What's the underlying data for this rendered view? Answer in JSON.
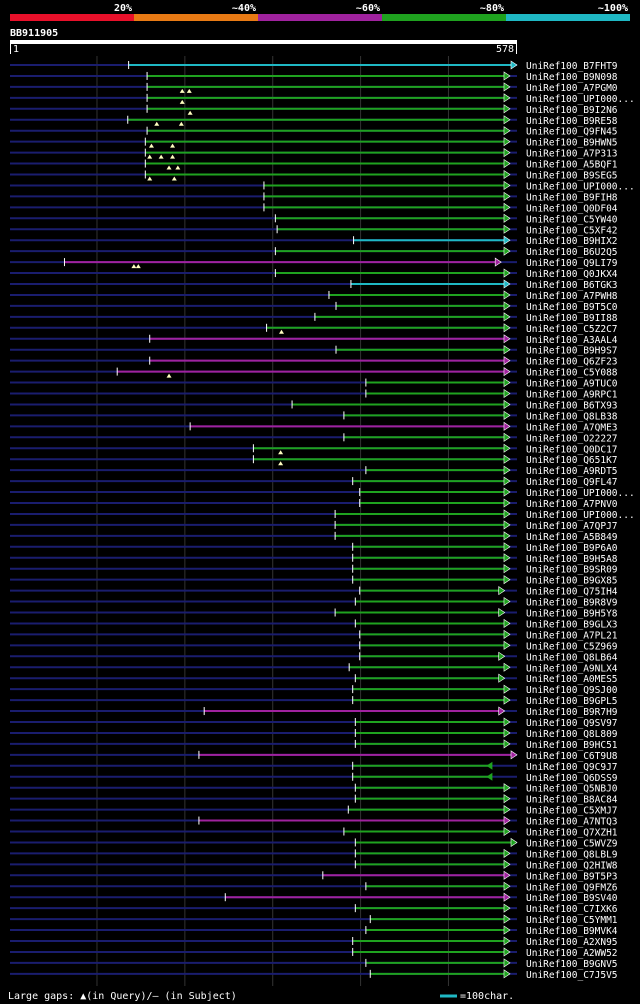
{
  "chart_data": {
    "type": "alignment-overview",
    "query_id": "BB911905",
    "query_range": [
      1,
      578
    ],
    "identity_legend": [
      {
        "label": "20%",
        "color": "#e8102a"
      },
      {
        "label": "~40%",
        "color": "#e87a14"
      },
      {
        "label": "~60%",
        "color": "#a0229e"
      },
      {
        "label": "~80%",
        "color": "#1fa21f"
      },
      {
        "label": "~100%",
        "color": "#1fb8c4"
      }
    ],
    "footer_text": "Large gaps: ▲(in Query)/— (in Subject)",
    "scale_text": "=100char.",
    "hits": [
      {
        "label": "UniRef100_B7FHT9",
        "start": 136,
        "end": 578,
        "pid": 100,
        "arrow": "right",
        "gaps": []
      },
      {
        "label": "UniRef100_B9N098",
        "start": 157,
        "end": 570,
        "pid": 80,
        "arrow": "right",
        "gaps": []
      },
      {
        "label": "UniRef100_A7PGM0",
        "start": 157,
        "end": 570,
        "pid": 80,
        "arrow": "right",
        "gaps": [
          197,
          205
        ]
      },
      {
        "label": "UniRef100_UPI000...",
        "start": 157,
        "end": 570,
        "pid": 80,
        "arrow": "right",
        "gaps": [
          197
        ]
      },
      {
        "label": "UniRef100_B9I2N6",
        "start": 157,
        "end": 570,
        "pid": 80,
        "arrow": "right",
        "gaps": [
          206
        ]
      },
      {
        "label": "UniRef100_B9RE58",
        "start": 135,
        "end": 570,
        "pid": 80,
        "arrow": "right",
        "gaps": [
          168,
          196
        ]
      },
      {
        "label": "UniRef100_Q9FN45",
        "start": 157,
        "end": 570,
        "pid": 80,
        "arrow": "right",
        "gaps": []
      },
      {
        "label": "UniRef100_B9HWN5",
        "start": 155,
        "end": 570,
        "pid": 80,
        "arrow": "right",
        "gaps": [
          162,
          186
        ]
      },
      {
        "label": "UniRef100_A7P313",
        "start": 155,
        "end": 570,
        "pid": 80,
        "arrow": "right",
        "gaps": [
          160,
          173,
          186
        ]
      },
      {
        "label": "UniRef100_A5BQF1",
        "start": 155,
        "end": 570,
        "pid": 80,
        "arrow": "right",
        "gaps": [
          182,
          192
        ]
      },
      {
        "label": "UniRef100_B9SEG5",
        "start": 155,
        "end": 570,
        "pid": 80,
        "arrow": "right",
        "gaps": [
          160,
          188
        ]
      },
      {
        "label": "UniRef100_UPI000...",
        "start": 290,
        "end": 570,
        "pid": 80,
        "arrow": "right",
        "gaps": []
      },
      {
        "label": "UniRef100_B9FIH8",
        "start": 290,
        "end": 570,
        "pid": 80,
        "arrow": "right",
        "gaps": []
      },
      {
        "label": "UniRef100_Q0DF04",
        "start": 290,
        "end": 570,
        "pid": 80,
        "arrow": "right",
        "gaps": []
      },
      {
        "label": "UniRef100_C5YW40",
        "start": 303,
        "end": 570,
        "pid": 80,
        "arrow": "right",
        "gaps": []
      },
      {
        "label": "UniRef100_C5XF42",
        "start": 305,
        "end": 570,
        "pid": 80,
        "arrow": "right",
        "gaps": []
      },
      {
        "label": "UniRef100_B9HIX2",
        "start": 392,
        "end": 570,
        "pid": 100,
        "arrow": "right",
        "gaps": []
      },
      {
        "label": "UniRef100_B6U2Q5",
        "start": 303,
        "end": 570,
        "pid": 80,
        "arrow": "right",
        "gaps": []
      },
      {
        "label": "UniRef100_Q9LI79",
        "start": 63,
        "end": 560,
        "pid": 60,
        "arrow": "right",
        "gaps": [
          142,
          147
        ]
      },
      {
        "label": "UniRef100_Q0JKX4",
        "start": 303,
        "end": 570,
        "pid": 80,
        "arrow": "right",
        "gaps": []
      },
      {
        "label": "UniRef100_B6TGK3",
        "start": 389,
        "end": 570,
        "pid": 100,
        "arrow": "right",
        "gaps": []
      },
      {
        "label": "UniRef100_A7PWH8",
        "start": 364,
        "end": 570,
        "pid": 80,
        "arrow": "right",
        "gaps": []
      },
      {
        "label": "UniRef100_B9T5C0",
        "start": 372,
        "end": 570,
        "pid": 80,
        "arrow": "right",
        "gaps": []
      },
      {
        "label": "UniRef100_B9II88",
        "start": 348,
        "end": 570,
        "pid": 80,
        "arrow": "right",
        "gaps": []
      },
      {
        "label": "UniRef100_C5Z2C7",
        "start": 293,
        "end": 570,
        "pid": 80,
        "arrow": "right",
        "gaps": [
          310
        ]
      },
      {
        "label": "UniRef100_A3AAL4",
        "start": 160,
        "end": 570,
        "pid": 60,
        "arrow": "right",
        "gaps": []
      },
      {
        "label": "UniRef100_B9H9S7",
        "start": 372,
        "end": 570,
        "pid": 80,
        "arrow": "right",
        "gaps": []
      },
      {
        "label": "UniRef100_Q6ZF23",
        "start": 160,
        "end": 570,
        "pid": 60,
        "arrow": "right",
        "gaps": []
      },
      {
        "label": "UniRef100_C5Y088",
        "start": 123,
        "end": 570,
        "pid": 60,
        "arrow": "right",
        "gaps": [
          182
        ]
      },
      {
        "label": "UniRef100_A9TUC0",
        "start": 406,
        "end": 570,
        "pid": 80,
        "arrow": "right",
        "gaps": []
      },
      {
        "label": "UniRef100_A9RPC1",
        "start": 406,
        "end": 570,
        "pid": 80,
        "arrow": "right",
        "gaps": []
      },
      {
        "label": "UniRef100_B6TX93",
        "start": 322,
        "end": 570,
        "pid": 80,
        "arrow": "right",
        "gaps": []
      },
      {
        "label": "UniRef100_Q8LB38",
        "start": 381,
        "end": 570,
        "pid": 80,
        "arrow": "right",
        "gaps": []
      },
      {
        "label": "UniRef100_A7QME3",
        "start": 206,
        "end": 570,
        "pid": 60,
        "arrow": "right",
        "gaps": []
      },
      {
        "label": "UniRef100_O22227",
        "start": 381,
        "end": 570,
        "pid": 80,
        "arrow": "right",
        "gaps": []
      },
      {
        "label": "UniRef100_Q0DC17",
        "start": 278,
        "end": 570,
        "pid": 80,
        "arrow": "right",
        "gaps": [
          309
        ]
      },
      {
        "label": "UniRef100_Q651K7",
        "start": 278,
        "end": 570,
        "pid": 80,
        "arrow": "right",
        "gaps": [
          309
        ]
      },
      {
        "label": "UniRef100_A9RDT5",
        "start": 406,
        "end": 570,
        "pid": 80,
        "arrow": "right",
        "gaps": []
      },
      {
        "label": "UniRef100_Q9FL47",
        "start": 391,
        "end": 570,
        "pid": 80,
        "arrow": "right",
        "gaps": []
      },
      {
        "label": "UniRef100_UPI000...",
        "start": 399,
        "end": 570,
        "pid": 80,
        "arrow": "right",
        "gaps": []
      },
      {
        "label": "UniRef100_A7PNV0",
        "start": 399,
        "end": 570,
        "pid": 80,
        "arrow": "right",
        "gaps": []
      },
      {
        "label": "UniRef100_UPI000...",
        "start": 371,
        "end": 570,
        "pid": 80,
        "arrow": "right",
        "gaps": []
      },
      {
        "label": "UniRef100_A7QPJ7",
        "start": 371,
        "end": 570,
        "pid": 80,
        "arrow": "right",
        "gaps": []
      },
      {
        "label": "UniRef100_A5B849",
        "start": 371,
        "end": 570,
        "pid": 80,
        "arrow": "right",
        "gaps": []
      },
      {
        "label": "UniRef100_B9P6A0",
        "start": 391,
        "end": 570,
        "pid": 80,
        "arrow": "right",
        "gaps": []
      },
      {
        "label": "UniRef100_B9H5A8",
        "start": 391,
        "end": 570,
        "pid": 80,
        "arrow": "right",
        "gaps": []
      },
      {
        "label": "UniRef100_B9SR09",
        "start": 391,
        "end": 570,
        "pid": 80,
        "arrow": "right",
        "gaps": []
      },
      {
        "label": "UniRef100_B9GX85",
        "start": 391,
        "end": 570,
        "pid": 80,
        "arrow": "right",
        "gaps": []
      },
      {
        "label": "UniRef100_Q75IH4",
        "start": 399,
        "end": 564,
        "pid": 80,
        "arrow": "right",
        "gaps": []
      },
      {
        "label": "UniRef100_B9R8V9",
        "start": 394,
        "end": 570,
        "pid": 80,
        "arrow": "right",
        "gaps": []
      },
      {
        "label": "UniRef100_B9H5Y8",
        "start": 371,
        "end": 564,
        "pid": 80,
        "arrow": "right",
        "gaps": []
      },
      {
        "label": "UniRef100_B9GLX3",
        "start": 394,
        "end": 570,
        "pid": 80,
        "arrow": "right",
        "gaps": []
      },
      {
        "label": "UniRef100_A7PL21",
        "start": 399,
        "end": 570,
        "pid": 80,
        "arrow": "right",
        "gaps": []
      },
      {
        "label": "UniRef100_C5Z969",
        "start": 399,
        "end": 570,
        "pid": 80,
        "arrow": "right",
        "gaps": []
      },
      {
        "label": "UniRef100_Q8LB64",
        "start": 399,
        "end": 564,
        "pid": 80,
        "arrow": "right",
        "gaps": []
      },
      {
        "label": "UniRef100_A9NLX4",
        "start": 387,
        "end": 570,
        "pid": 80,
        "arrow": "right",
        "gaps": []
      },
      {
        "label": "UniRef100_A0MES5",
        "start": 394,
        "end": 564,
        "pid": 80,
        "arrow": "right",
        "gaps": []
      },
      {
        "label": "UniRef100_Q9SJ00",
        "start": 391,
        "end": 570,
        "pid": 80,
        "arrow": "right",
        "gaps": []
      },
      {
        "label": "UniRef100_B9GPL5",
        "start": 391,
        "end": 570,
        "pid": 80,
        "arrow": "right",
        "gaps": []
      },
      {
        "label": "UniRef100_B9R7H9",
        "start": 222,
        "end": 564,
        "pid": 60,
        "arrow": "right",
        "gaps": []
      },
      {
        "label": "UniRef100_Q9SV97",
        "start": 394,
        "end": 570,
        "pid": 80,
        "arrow": "right",
        "gaps": []
      },
      {
        "label": "UniRef100_Q8L809",
        "start": 394,
        "end": 570,
        "pid": 80,
        "arrow": "right",
        "gaps": []
      },
      {
        "label": "UniRef100_B9HC51",
        "start": 394,
        "end": 570,
        "pid": 80,
        "arrow": "right",
        "gaps": []
      },
      {
        "label": "UniRef100_C6T9U8",
        "start": 216,
        "end": 578,
        "pid": 60,
        "arrow": "right",
        "gaps": []
      },
      {
        "label": "UniRef100_Q9C9J7",
        "start": 391,
        "end": 550,
        "pid": 80,
        "arrow": "left",
        "gaps": []
      },
      {
        "label": "UniRef100_Q6DSS9",
        "start": 391,
        "end": 550,
        "pid": 80,
        "arrow": "left",
        "gaps": []
      },
      {
        "label": "UniRef100_Q5NBJ0",
        "start": 394,
        "end": 570,
        "pid": 80,
        "arrow": "right",
        "gaps": []
      },
      {
        "label": "UniRef100_B8AC84",
        "start": 394,
        "end": 570,
        "pid": 80,
        "arrow": "right",
        "gaps": []
      },
      {
        "label": "UniRef100_C5XMJ7",
        "start": 386,
        "end": 570,
        "pid": 80,
        "arrow": "right",
        "gaps": []
      },
      {
        "label": "UniRef100_A7NTQ3",
        "start": 216,
        "end": 570,
        "pid": 60,
        "arrow": "right",
        "gaps": []
      },
      {
        "label": "UniRef100_Q7XZH1",
        "start": 381,
        "end": 570,
        "pid": 80,
        "arrow": "right",
        "gaps": []
      },
      {
        "label": "UniRef100_C5WVZ9",
        "start": 394,
        "end": 578,
        "pid": 80,
        "arrow": "right",
        "gaps": []
      },
      {
        "label": "UniRef100_Q8LBL9",
        "start": 394,
        "end": 570,
        "pid": 80,
        "arrow": "right",
        "gaps": []
      },
      {
        "label": "UniRef100_Q2HIW8",
        "start": 394,
        "end": 570,
        "pid": 80,
        "arrow": "right",
        "gaps": []
      },
      {
        "label": "UniRef100_B9T5P3",
        "start": 357,
        "end": 570,
        "pid": 60,
        "arrow": "right",
        "gaps": []
      },
      {
        "label": "UniRef100_Q9FMZ6",
        "start": 406,
        "end": 570,
        "pid": 80,
        "arrow": "right",
        "gaps": []
      },
      {
        "label": "UniRef100_B9SV40",
        "start": 246,
        "end": 570,
        "pid": 60,
        "arrow": "right",
        "gaps": []
      },
      {
        "label": "UniRef100_C7IXK6",
        "start": 394,
        "end": 570,
        "pid": 80,
        "arrow": "right",
        "gaps": []
      },
      {
        "label": "UniRef100_C5YMM1",
        "start": 411,
        "end": 570,
        "pid": 80,
        "arrow": "right",
        "gaps": []
      },
      {
        "label": "UniRef100_B9MVK4",
        "start": 406,
        "end": 570,
        "pid": 80,
        "arrow": "right",
        "gaps": []
      },
      {
        "label": "UniRef100_A2XN95",
        "start": 391,
        "end": 570,
        "pid": 80,
        "arrow": "right",
        "gaps": []
      },
      {
        "label": "UniRef100_A2WW52",
        "start": 391,
        "end": 570,
        "pid": 80,
        "arrow": "right",
        "gaps": []
      },
      {
        "label": "UniRef100_B9GNV5",
        "start": 406,
        "end": 570,
        "pid": 80,
        "arrow": "right",
        "gaps": []
      },
      {
        "label": "UniRef100_C7J5V5",
        "start": 411,
        "end": 570,
        "pid": 80,
        "arrow": "right",
        "gaps": []
      }
    ]
  }
}
